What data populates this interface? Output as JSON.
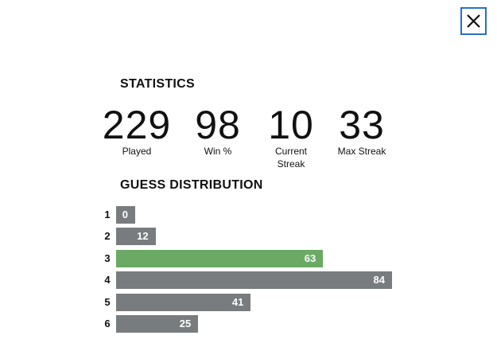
{
  "title": "STATISTICS",
  "statistics": [
    {
      "value": 229,
      "label": "Played"
    },
    {
      "value": 98,
      "label": "Win %"
    },
    {
      "value": 10,
      "label": "Current Streak"
    },
    {
      "value": 33,
      "label": "Max Streak"
    }
  ],
  "guess_distribution": {
    "title": "GUESS DISTRIBUTION",
    "rows": [
      {
        "guess": "1",
        "count": 0,
        "color": "#787c7e"
      },
      {
        "guess": "2",
        "count": 12,
        "color": "#787c7e"
      },
      {
        "guess": "3",
        "count": 63,
        "color": "#6aaa64"
      },
      {
        "guess": "4",
        "count": 84,
        "color": "#787c7e"
      },
      {
        "guess": "5",
        "count": 41,
        "color": "#787c7e"
      },
      {
        "guess": "6",
        "count": 25,
        "color": "#787c7e"
      }
    ]
  }
}
